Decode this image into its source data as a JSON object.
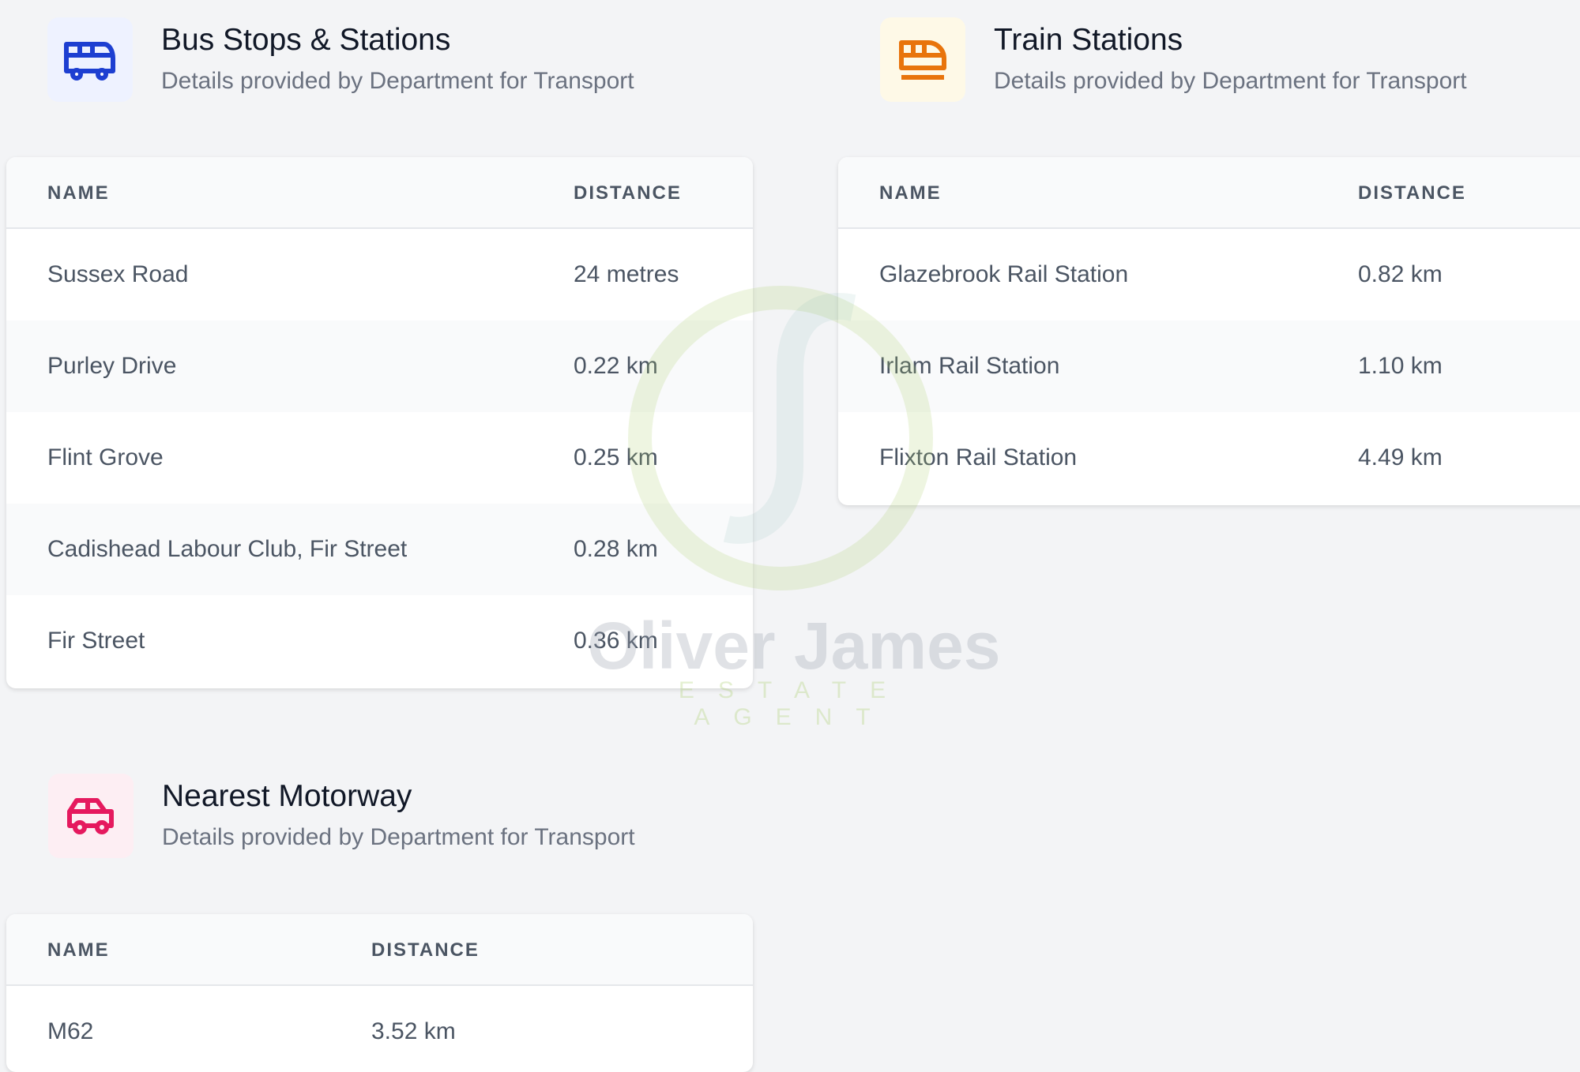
{
  "bus": {
    "title": "Bus Stops & Stations",
    "subtitle": "Details provided by Department for Transport",
    "icon": "bus-icon",
    "icon_color": "#1d3fd1",
    "icon_bg": "#eef2ff",
    "columns": [
      "NAME",
      "DISTANCE"
    ],
    "rows": [
      {
        "name": "Sussex Road",
        "distance": "24 metres"
      },
      {
        "name": "Purley Drive",
        "distance": "0.22 km"
      },
      {
        "name": "Flint Grove",
        "distance": "0.25 km"
      },
      {
        "name": "Cadishead Labour Club, Fir Street",
        "distance": "0.28 km"
      },
      {
        "name": "Fir Street",
        "distance": "0.36 km"
      }
    ]
  },
  "train": {
    "title": "Train Stations",
    "subtitle": "Details provided by Department for Transport",
    "icon": "train-icon",
    "icon_color": "#e8740c",
    "icon_bg": "#fef9e7",
    "columns": [
      "NAME",
      "DISTANCE"
    ],
    "rows": [
      {
        "name": "Glazebrook Rail Station",
        "distance": "0.82 km"
      },
      {
        "name": "Irlam Rail Station",
        "distance": "1.10 km"
      },
      {
        "name": "Flixton Rail Station",
        "distance": "4.49 km"
      }
    ]
  },
  "motorway": {
    "title": "Nearest Motorway",
    "subtitle": "Details provided by Department for Transport",
    "icon": "car-icon",
    "icon_color": "#e5195e",
    "icon_bg": "#fdeef3",
    "columns": [
      "NAME",
      "DISTANCE"
    ],
    "rows": [
      {
        "name": "M62",
        "distance": "3.52 km"
      }
    ]
  },
  "watermark": {
    "name": "Oliver James",
    "tagline": "ESTATE AGENT"
  }
}
